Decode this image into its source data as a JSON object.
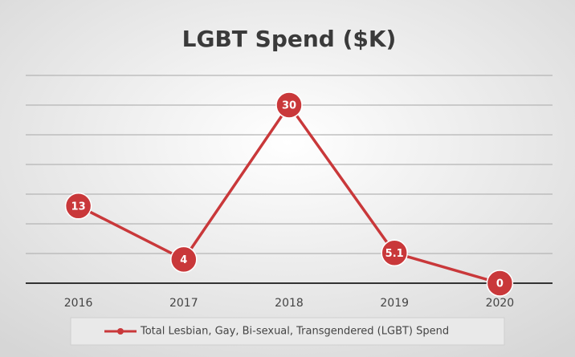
{
  "chart_data": {
    "type": "line",
    "title": "LGBT Spend ($K)",
    "categories": [
      "2016",
      "2017",
      "2018",
      "2019",
      "2020"
    ],
    "series": [
      {
        "name": "Total Lesbian, Gay, Bi-sexual, Transgendered (LGBT) Spend",
        "color": "#c9383a",
        "values": [
          13,
          4,
          30,
          5.1,
          0
        ]
      }
    ],
    "ylim": [
      0,
      35
    ],
    "yticks": [
      0,
      5,
      10,
      15,
      20,
      25,
      30,
      35
    ],
    "grid": true,
    "legend": "bottom"
  }
}
